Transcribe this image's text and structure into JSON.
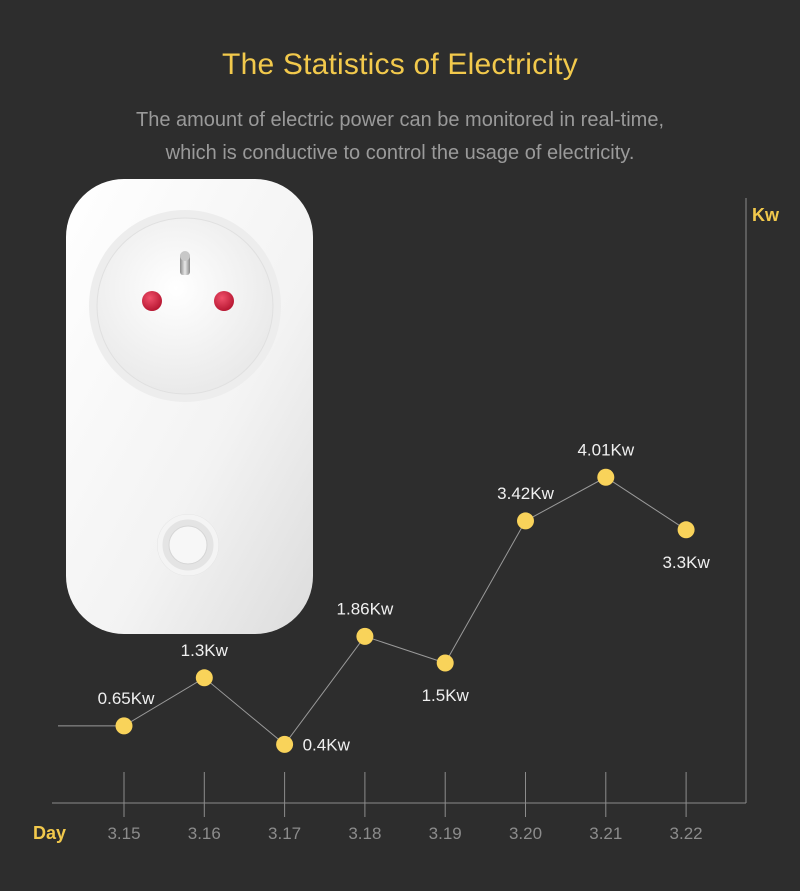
{
  "header": {
    "title": "The Statistics of Electricity",
    "subtitle_line1": "The amount of electric power can be monitored in real-time,",
    "subtitle_line2": "which is conductive to control the usage of electricity."
  },
  "product": {
    "image": "smart-plug-photo"
  },
  "colors": {
    "background": "#2d2d2d",
    "accent": "#f2c94c",
    "point": "#f9d35a",
    "line": "#9a9a9a",
    "axis": "#8c8c8c"
  },
  "chart_data": {
    "type": "line",
    "title": "",
    "xlabel": "Day",
    "ylabel": "Kw",
    "categories": [
      "3.15",
      "3.16",
      "3.17",
      "3.18",
      "3.19",
      "3.20",
      "3.21",
      "3.22"
    ],
    "series": [
      {
        "values": [
          0.65,
          1.3,
          0.4,
          1.86,
          1.5,
          3.42,
          4.01,
          3.3
        ],
        "labels": [
          "0.65Kw",
          "1.3Kw",
          "0.4Kw",
          "1.86Kw",
          "1.5Kw",
          "3.42Kw",
          "4.01Kw",
          "3.3Kw"
        ]
      }
    ],
    "ylim": [
      0,
      4.5
    ],
    "grid": false,
    "legend": "none"
  }
}
